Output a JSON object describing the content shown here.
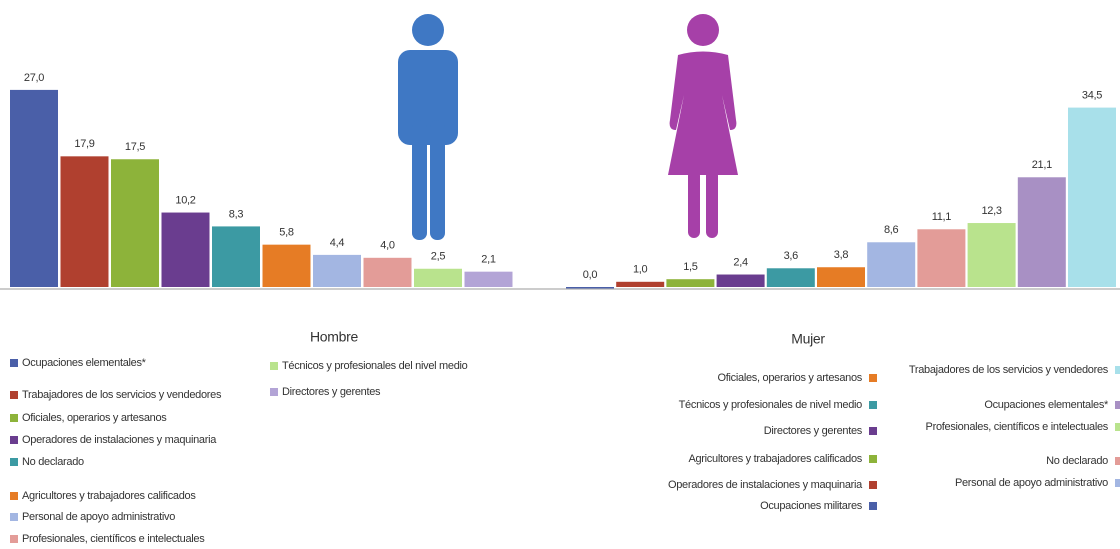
{
  "chart_data": [
    {
      "type": "bar",
      "title": "Hombre",
      "categories": [
        "Ocupaciones elementales*",
        "Trabajadores de los servicios y vendedores",
        "Oficiales, operarios y artesanos",
        "Operadores de instalaciones y maquinaria",
        "No declarado",
        "Agricultores y trabajadores calificados",
        "Personal de apoyo administrativo",
        "Profesionales, científicos e intelectuales",
        "Técnicos y profesionales del nivel medio",
        "Directores y gerentes"
      ],
      "values": [
        27.0,
        17.9,
        17.5,
        10.2,
        8.3,
        5.8,
        4.4,
        4.0,
        2.5,
        2.1
      ],
      "value_labels": [
        "27,0",
        "17,9",
        "17,5",
        "10,2",
        "8,3",
        "5,8",
        "4,4",
        "4,0",
        "2,5",
        "2,1"
      ],
      "colors": [
        "#4a5fa8",
        "#b0402f",
        "#8db33a",
        "#6a3d8f",
        "#3c9aa3",
        "#e67c25",
        "#a3b6e2",
        "#e39c98",
        "#b9e38d",
        "#b3a4d6"
      ]
    },
    {
      "type": "bar",
      "title": "Mujer",
      "categories": [
        "Ocupaciones militares",
        "Operadores de instalaciones y maquinaria",
        "Agricultores y trabajadores calificados",
        "Directores y gerentes",
        "Técnicos y profesionales de nivel medio",
        "Oficiales, operarios y artesanos",
        "Personal de apoyo administrativo",
        "No declarado",
        "Profesionales, científicos e intelectuales",
        "Ocupaciones elementales*",
        "Trabajadores de los servicios y vendedores"
      ],
      "values": [
        0.0,
        1.0,
        1.5,
        2.4,
        3.6,
        3.8,
        8.6,
        11.1,
        12.3,
        21.1,
        34.5
      ],
      "value_labels": [
        "0,0",
        "1,0",
        "1,5",
        "2,4",
        "3,6",
        "3,8",
        "8,6",
        "11,1",
        "12,3",
        "21,1",
        "34,5"
      ],
      "colors": [
        "#4a5fa8",
        "#b0402f",
        "#8db33a",
        "#6a3d8f",
        "#3c9aa3",
        "#e67c25",
        "#a3b6e2",
        "#e39c98",
        "#b9e38d",
        "#a890c4",
        "#a8e0ea"
      ]
    }
  ]
}
